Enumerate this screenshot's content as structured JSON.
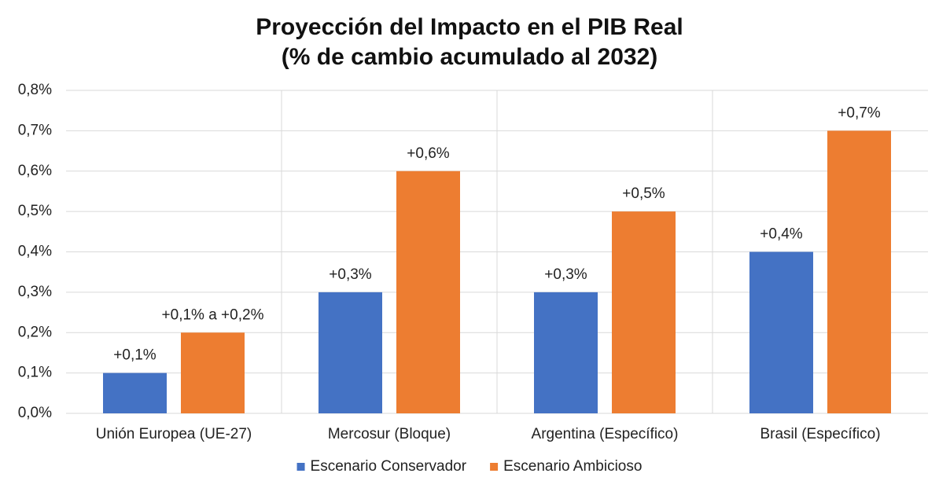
{
  "chart_data": {
    "type": "bar",
    "title": "Proyección del Impacto en el PIB Real",
    "subtitle": "(% de cambio acumulado al 2032)",
    "categories": [
      "Unión Europea (UE-27)",
      "Mercosur (Bloque)",
      "Argentina (Específico)",
      "Brasil (Específico)"
    ],
    "series": [
      {
        "name": "Escenario Conservador",
        "color": "#4472c4",
        "values": [
          0.1,
          0.3,
          0.3,
          0.4
        ],
        "value_labels": [
          "+0,1%",
          "+0,3%",
          "+0,3%",
          "+0,4%"
        ]
      },
      {
        "name": "Escenario Ambicioso",
        "color": "#ed7d31",
        "values": [
          0.2,
          0.6,
          0.5,
          0.7
        ],
        "value_labels": [
          "+0,1% a +0,2%",
          "+0,6%",
          "+0,5%",
          "+0,7%"
        ]
      }
    ],
    "ylim": [
      0,
      0.8
    ],
    "yticks": [
      {
        "value": 0,
        "label": "0,0%"
      },
      {
        "value": 0.1,
        "label": "0,1%"
      },
      {
        "value": 0.2,
        "label": "0,2%"
      },
      {
        "value": 0.3,
        "label": "0,3%"
      },
      {
        "value": 0.4,
        "label": "0,4%"
      },
      {
        "value": 0.5,
        "label": "0,5%"
      },
      {
        "value": 0.6,
        "label": "0,6%"
      },
      {
        "value": 0.7,
        "label": "0,7%"
      },
      {
        "value": 0.8,
        "label": "0,8%"
      }
    ],
    "grid": true,
    "legend": "bottom"
  }
}
